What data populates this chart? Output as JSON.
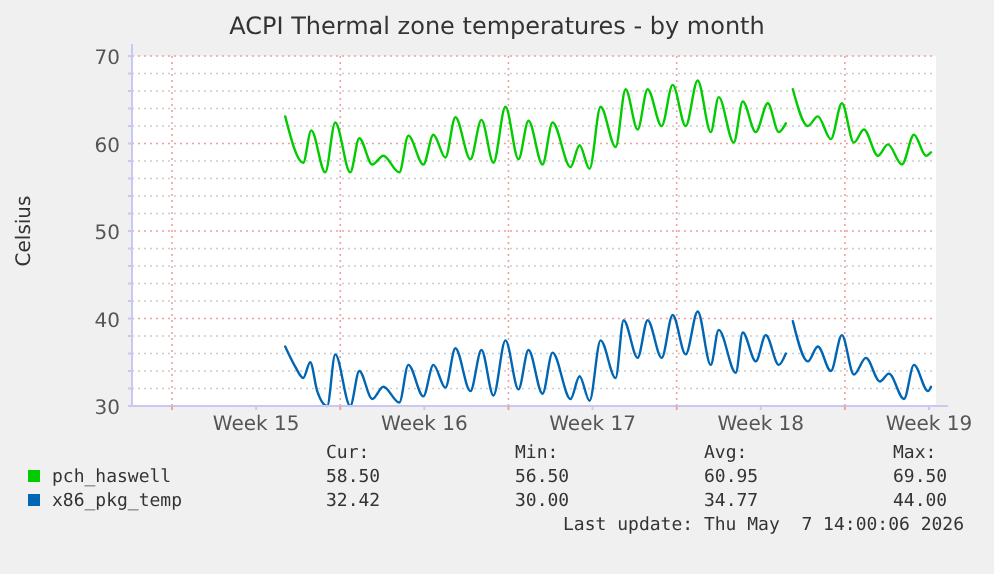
{
  "chart_data": {
    "type": "line",
    "title": "ACPI Thermal zone temperatures - by month",
    "ylabel": "Celsius",
    "xlim": [
      "2026-04-04T08:00",
      "2026-05-07T19:00"
    ],
    "xticks": [
      {
        "value": "2026-04-06",
        "label": null
      },
      {
        "value": "2026-04-09T12:00",
        "label": "Week 15"
      },
      {
        "value": "2026-04-13",
        "label": null
      },
      {
        "value": "2026-04-16T12:00",
        "label": "Week 16"
      },
      {
        "value": "2026-04-20",
        "label": null
      },
      {
        "value": "2026-04-23T12:00",
        "label": "Week 17"
      },
      {
        "value": "2026-04-27",
        "label": null
      },
      {
        "value": "2026-04-30T12:00",
        "label": "Week 18"
      },
      {
        "value": "2026-05-04",
        "label": null
      },
      {
        "value": "2026-05-07T12:00",
        "label": "Week 19"
      }
    ],
    "ylim": [
      30,
      70
    ],
    "yticks": [
      30,
      {
        "value": 32,
        "label": null
      },
      {
        "value": 34,
        "label": null
      },
      {
        "value": 36,
        "label": null
      },
      {
        "value": 38,
        "label": null
      },
      40,
      {
        "value": 42,
        "label": null
      },
      {
        "value": 44,
        "label": null
      },
      {
        "value": 46,
        "label": null
      },
      {
        "value": 48,
        "label": null
      },
      50,
      {
        "value": 52,
        "label": null
      },
      {
        "value": 54,
        "label": null
      },
      {
        "value": 56,
        "label": null
      },
      {
        "value": 58,
        "label": null
      },
      60,
      {
        "value": 62,
        "label": null
      },
      {
        "value": 64,
        "label": null
      },
      {
        "value": 66,
        "label": null
      },
      {
        "value": 68,
        "label": null
      },
      70
    ],
    "grid": true,
    "legend": "bottom",
    "series": [
      {
        "name": "pch_haswell",
        "color": "#00cc00",
        "x": [
          "2026-04-10T17:00",
          "2026-04-11T11:00",
          "2026-04-11T19:00",
          "2026-04-12T09:00",
          "2026-04-12T19:00",
          "2026-04-13T10:00",
          "2026-04-13T19:00",
          "2026-04-14T08:00",
          "2026-04-14T19:00",
          "2026-04-15T11:00",
          "2026-04-15T20:00",
          "2026-04-16T11:00",
          "2026-04-16T21:00",
          "2026-04-17T09:00",
          "2026-04-17T19:00",
          "2026-04-18T10:00",
          "2026-04-18T21:00",
          "2026-04-19T09:00",
          "2026-04-19T21:00",
          "2026-04-20T10:00",
          "2026-04-20T20:00",
          "2026-04-21T10:00",
          "2026-04-21T20:00",
          "2026-04-22T14:00",
          "2026-04-22T23:00",
          "2026-04-23T09:00",
          "2026-04-23T20:00",
          "2026-04-24T11:00",
          "2026-04-24T21:00",
          "2026-04-25T09:00",
          "2026-04-25T19:00",
          "2026-04-26T09:00",
          "2026-04-26T20:00",
          "2026-04-27T09:00",
          "2026-04-27T21:00",
          "2026-04-28T10:00",
          "2026-04-28T18:00",
          "2026-04-29T09:00",
          "2026-04-29T18:00",
          "2026-04-30T07:00",
          "2026-04-30T19:00",
          "2026-05-01T06:00",
          "2026-05-01T13:00",
          "2026-05-01T17:00",
          "2026-05-01T20:00",
          "2026-05-02T11:00",
          "2026-05-02T21:00",
          "2026-05-03T10:00",
          "2026-05-03T21:00",
          "2026-05-04T09:00",
          "2026-05-04T19:00",
          "2026-05-05T09:00",
          "2026-05-05T19:00",
          "2026-05-06T09:00",
          "2026-05-06T21:00",
          "2026-05-07T09:00",
          "2026-05-07T14:00"
        ],
        "values": [
          63.1,
          57.8,
          61.5,
          56.7,
          62.4,
          56.7,
          60.6,
          57.6,
          58.6,
          56.7,
          60.9,
          57.6,
          61.0,
          58.4,
          63.0,
          58.2,
          62.7,
          57.8,
          64.2,
          58.2,
          62.6,
          57.6,
          62.4,
          57.3,
          59.8,
          57.1,
          64.2,
          59.6,
          66.2,
          61.6,
          66.2,
          62.0,
          66.7,
          62.0,
          67.2,
          61.3,
          65.3,
          60.1,
          64.8,
          61.3,
          64.6,
          61.3,
          62.3,
          null,
          66.2,
          62.0,
          63.1,
          60.5,
          64.6,
          60.1,
          61.6,
          58.6,
          59.9,
          57.6,
          61.0,
          58.6,
          59.0
        ]
      },
      {
        "name": "x86_pkg_temp",
        "color": "#0066b3",
        "x": [
          "2026-04-10T17:00",
          "2026-04-11T03:00",
          "2026-04-11T11:00",
          "2026-04-11T18:00",
          "2026-04-12T01:00",
          "2026-04-12T11:00",
          "2026-04-12T19:00",
          "2026-04-13T10:00",
          "2026-04-13T19:00",
          "2026-04-14T08:00",
          "2026-04-14T19:00",
          "2026-04-15T11:00",
          "2026-04-15T20:00",
          "2026-04-16T11:00",
          "2026-04-16T21:00",
          "2026-04-17T09:00",
          "2026-04-17T19:00",
          "2026-04-18T10:00",
          "2026-04-18T21:00",
          "2026-04-19T09:00",
          "2026-04-19T21:00",
          "2026-04-20T10:00",
          "2026-04-20T20:00",
          "2026-04-21T10:00",
          "2026-04-21T20:00",
          "2026-04-22T14:00",
          "2026-04-22T23:00",
          "2026-04-23T09:00",
          "2026-04-23T20:00",
          "2026-04-24T11:00",
          "2026-04-24T19:00",
          "2026-04-25T09:00",
          "2026-04-25T19:00",
          "2026-04-26T09:00",
          "2026-04-26T20:00",
          "2026-04-27T09:00",
          "2026-04-27T21:00",
          "2026-04-28T10:00",
          "2026-04-28T18:00",
          "2026-04-29T11:00",
          "2026-04-29T18:00",
          "2026-04-30T07:00",
          "2026-04-30T17:00",
          "2026-05-01T06:00",
          "2026-05-01T13:00",
          "2026-05-01T17:00",
          "2026-05-01T20:00",
          "2026-05-02T11:00",
          "2026-05-02T21:00",
          "2026-05-03T10:00",
          "2026-05-03T21:00",
          "2026-05-04T09:00",
          "2026-05-04T21:00",
          "2026-05-05T11:00",
          "2026-05-05T20:00",
          "2026-05-06T11:00",
          "2026-05-06T21:00",
          "2026-05-07T11:00",
          "2026-05-07T14:00"
        ],
        "values": [
          36.8,
          34.5,
          33.2,
          35.0,
          31.7,
          30.0,
          35.9,
          30.0,
          34.0,
          30.8,
          32.2,
          30.4,
          34.7,
          31.1,
          34.7,
          32.1,
          36.6,
          31.7,
          36.4,
          31.2,
          37.5,
          31.9,
          36.4,
          31.4,
          36.1,
          30.8,
          33.4,
          30.6,
          37.5,
          33.2,
          39.8,
          35.5,
          39.8,
          35.5,
          40.4,
          35.9,
          40.8,
          34.7,
          38.7,
          33.8,
          38.4,
          35.1,
          38.1,
          34.7,
          36.0,
          null,
          39.7,
          35.1,
          36.8,
          34.0,
          38.1,
          33.6,
          35.5,
          32.8,
          33.7,
          30.8,
          34.7,
          31.7,
          32.2
        ]
      }
    ],
    "annotations": [
      "Cur:",
      "Min:",
      "Avg:",
      "Max:",
      "58.50",
      "56.50",
      "60.95",
      "69.50",
      "32.42",
      "30.00",
      "34.77",
      "44.00",
      "Last update: Thu May  7 14:00:06 2026"
    ]
  }
}
